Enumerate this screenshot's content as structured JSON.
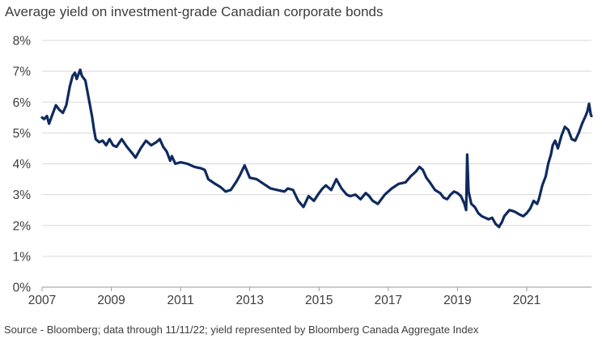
{
  "title": "Average yield on investment-grade Canadian corporate bonds",
  "source": "Source - Bloomberg; data through 11/11/22; yield represented by Bloomberg Canada Aggregate Index",
  "chart_data": {
    "type": "line",
    "title": "Average yield on investment-grade Canadian corporate bonds",
    "xlabel": "",
    "ylabel": "",
    "xlim": [
      2007,
      2022.87
    ],
    "ylim": [
      0,
      8
    ],
    "x_ticks": [
      "2007",
      "2009",
      "2011",
      "2013",
      "2015",
      "2017",
      "2019",
      "2021"
    ],
    "y_ticks": [
      "0%",
      "1%",
      "2%",
      "3%",
      "4%",
      "5%",
      "6%",
      "7%",
      "8%"
    ],
    "y_unit": "%",
    "grid": "horizontal",
    "line_color": "#0f2a5e",
    "series": [
      {
        "x": [
          2007.0,
          2007.06,
          2007.14,
          2007.2,
          2007.3,
          2007.4,
          2007.5,
          2007.6,
          2007.7,
          2007.75,
          2007.8,
          2007.88,
          2007.95,
          2008.0,
          2008.05,
          2008.1,
          2008.15,
          2008.25,
          2008.35,
          2008.45,
          2008.5,
          2008.55,
          2008.65,
          2008.75,
          2008.85,
          2008.95,
          2009.05,
          2009.15,
          2009.3,
          2009.45,
          2009.6,
          2009.7,
          2009.85,
          2010.0,
          2010.15,
          2010.3,
          2010.4,
          2010.5,
          2010.6,
          2010.7,
          2010.75,
          2010.85,
          2011.0,
          2011.2,
          2011.4,
          2011.6,
          2011.7,
          2011.8,
          2012.0,
          2012.15,
          2012.3,
          2012.45,
          2012.6,
          2012.7,
          2012.85,
          2013.0,
          2013.2,
          2013.4,
          2013.6,
          2013.8,
          2014.0,
          2014.1,
          2014.25,
          2014.4,
          2014.55,
          2014.7,
          2014.85,
          2015.0,
          2015.1,
          2015.2,
          2015.35,
          2015.5,
          2015.65,
          2015.8,
          2015.9,
          2016.05,
          2016.2,
          2016.35,
          2016.45,
          2016.55,
          2016.7,
          2016.9,
          2017.1,
          2017.3,
          2017.5,
          2017.65,
          2017.8,
          2017.9,
          2018.0,
          2018.1,
          2018.2,
          2018.35,
          2018.5,
          2018.6,
          2018.7,
          2018.8,
          2018.9,
          2019.0,
          2019.1,
          2019.2,
          2019.25,
          2019.28,
          2019.32,
          2019.4,
          2019.5,
          2019.6,
          2019.7,
          2019.8,
          2019.9,
          2020.0,
          2020.1,
          2020.2,
          2020.22,
          2020.28,
          2020.35,
          2020.5,
          2020.65,
          2020.8,
          2020.9,
          2021.0,
          2021.1,
          2021.2,
          2021.3,
          2021.35,
          2021.45,
          2021.55,
          2021.62,
          2021.7,
          2021.75,
          2021.82,
          2021.9,
          2022.0,
          2022.1,
          2022.2,
          2022.3,
          2022.4,
          2022.5,
          2022.6,
          2022.7,
          2022.75,
          2022.8,
          2022.85,
          2022.87
        ],
        "y": [
          5.5,
          5.45,
          5.55,
          5.3,
          5.6,
          5.9,
          5.75,
          5.65,
          5.9,
          6.2,
          6.5,
          6.85,
          6.95,
          6.75,
          6.9,
          7.05,
          6.85,
          6.7,
          6.1,
          5.5,
          5.1,
          4.8,
          4.7,
          4.75,
          4.6,
          4.8,
          4.6,
          4.55,
          4.8,
          4.55,
          4.35,
          4.2,
          4.5,
          4.75,
          4.6,
          4.7,
          4.8,
          4.55,
          4.4,
          4.1,
          4.25,
          4.0,
          4.05,
          4.0,
          3.9,
          3.85,
          3.8,
          3.5,
          3.35,
          3.25,
          3.1,
          3.15,
          3.4,
          3.6,
          3.95,
          3.55,
          3.5,
          3.35,
          3.2,
          3.15,
          3.1,
          3.2,
          3.15,
          2.8,
          2.6,
          2.95,
          2.8,
          3.05,
          3.2,
          3.3,
          3.15,
          3.5,
          3.2,
          3.0,
          2.95,
          3.0,
          2.85,
          3.05,
          2.95,
          2.8,
          2.7,
          3.0,
          3.2,
          3.35,
          3.4,
          3.6,
          3.75,
          3.9,
          3.8,
          3.55,
          3.4,
          3.15,
          3.05,
          2.9,
          2.85,
          3.0,
          3.1,
          3.05,
          2.95,
          2.7,
          2.5,
          4.3,
          3.1,
          2.7,
          2.6,
          2.4,
          2.3,
          2.25,
          2.2,
          2.25,
          2.05,
          1.95,
          2.0,
          2.1,
          2.3,
          2.5,
          2.45,
          2.35,
          2.3,
          2.4,
          2.55,
          2.8,
          2.7,
          2.85,
          3.3,
          3.6,
          4.0,
          4.3,
          4.6,
          4.75,
          4.5,
          4.9,
          5.2,
          5.1,
          4.8,
          4.75,
          5.0,
          5.3,
          5.55,
          5.7,
          5.95,
          5.6,
          5.55
        ]
      }
    ]
  }
}
